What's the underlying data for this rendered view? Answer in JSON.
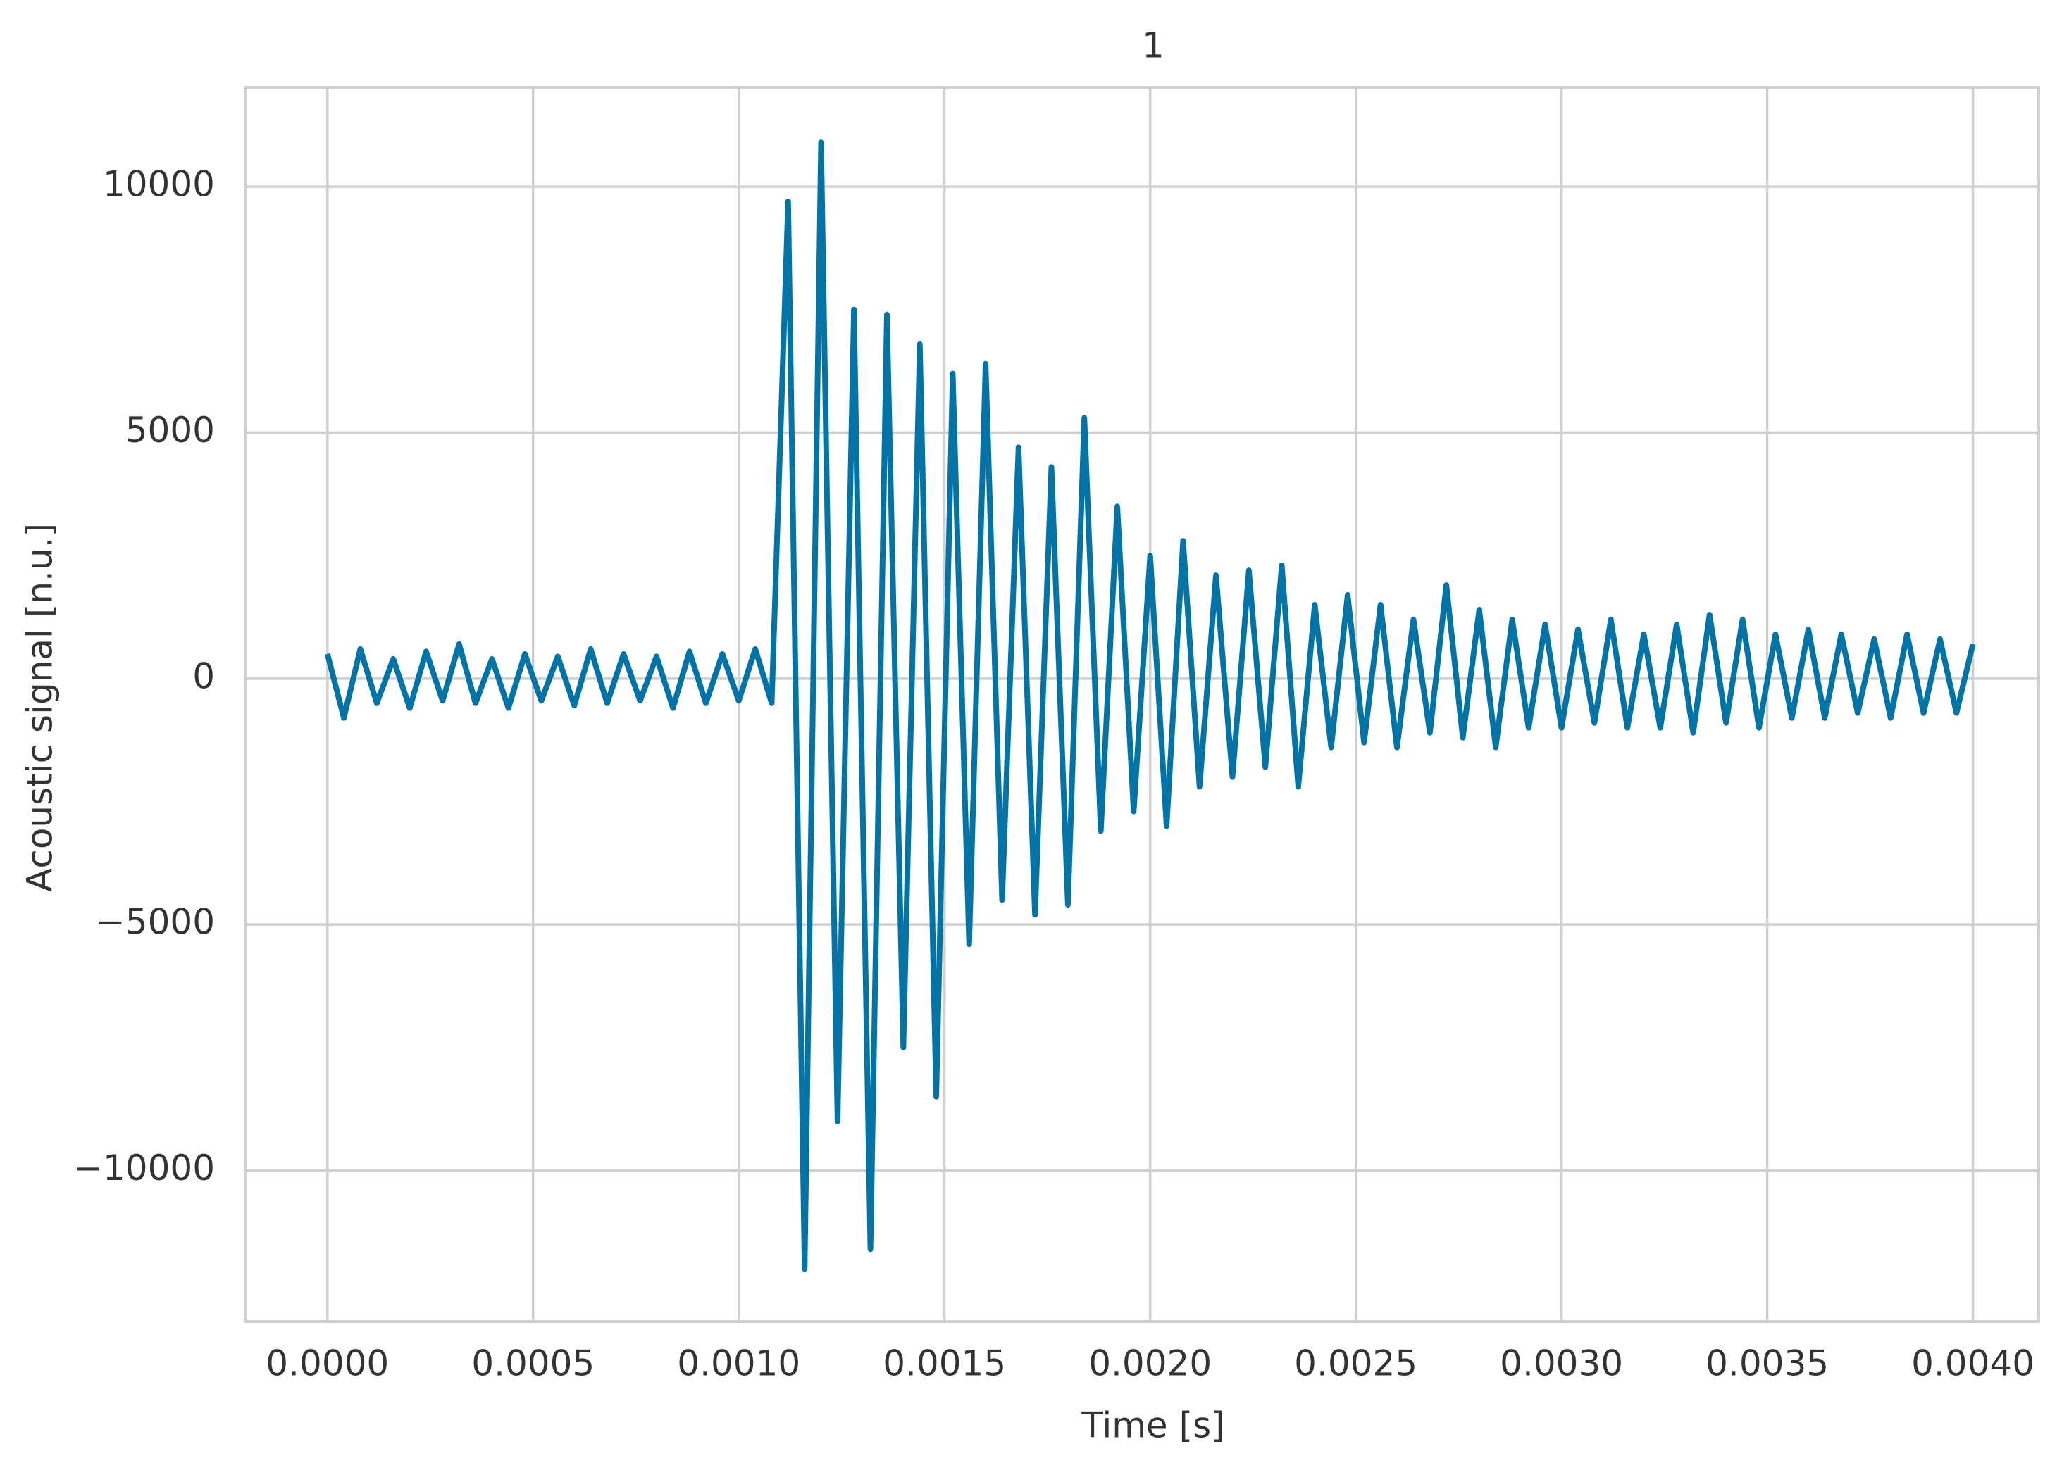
{
  "chart_data": {
    "type": "line",
    "title": "1",
    "xlabel": "Time [s]",
    "ylabel": "Acoustic signal [n.u.]",
    "x": [
      0,
      4e-05,
      8e-05,
      0.00012,
      0.00016,
      0.0002,
      0.00024,
      0.00028,
      0.00032,
      0.00036,
      0.0004,
      0.00044,
      0.00048,
      0.00052,
      0.00056,
      0.0006,
      0.00064,
      0.00068,
      0.00072,
      0.00076,
      0.0008,
      0.00084,
      0.00088,
      0.00092,
      0.00096,
      0.001,
      0.00104,
      0.00108,
      0.00112,
      0.00116,
      0.0012,
      0.00124,
      0.00128,
      0.00132,
      0.00136,
      0.0014,
      0.00144,
      0.00148,
      0.00152,
      0.00156,
      0.0016,
      0.00164,
      0.00168,
      0.00172,
      0.00176,
      0.0018,
      0.00184,
      0.00188,
      0.00192,
      0.00196,
      0.002,
      0.00204,
      0.00208,
      0.00212,
      0.00216,
      0.0022,
      0.00224,
      0.00228,
      0.00232,
      0.00236,
      0.0024,
      0.00244,
      0.00248,
      0.00252,
      0.00256,
      0.0026,
      0.00264,
      0.00268,
      0.00272,
      0.00276,
      0.0028,
      0.00284,
      0.00288,
      0.00292,
      0.00296,
      0.003,
      0.00304,
      0.00308,
      0.00312,
      0.00316,
      0.0032,
      0.00324,
      0.00328,
      0.00332,
      0.00336,
      0.0034,
      0.00344,
      0.00348,
      0.00352,
      0.00356,
      0.0036,
      0.00364,
      0.00368,
      0.00372,
      0.00376,
      0.0038,
      0.00384,
      0.00388,
      0.00392,
      0.00396,
      0.004
    ],
    "values": [
      500,
      -800,
      600,
      -500,
      400,
      -600,
      550,
      -450,
      700,
      -500,
      400,
      -600,
      500,
      -450,
      450,
      -550,
      600,
      -500,
      500,
      -450,
      450,
      -600,
      550,
      -500,
      500,
      -450,
      600,
      -500,
      9700,
      -12000,
      10900,
      -9000,
      7500,
      -11600,
      7400,
      -7500,
      6800,
      -8500,
      6200,
      -5400,
      6400,
      -4500,
      4700,
      -4800,
      4300,
      -4600,
      5300,
      -3100,
      3500,
      -2700,
      2500,
      -3000,
      2800,
      -2200,
      2100,
      -2000,
      2200,
      -1800,
      2300,
      -2200,
      1500,
      -1400,
      1700,
      -1300,
      1500,
      -1400,
      1200,
      -1100,
      1900,
      -1200,
      1400,
      -1400,
      1200,
      -1000,
      1100,
      -1000,
      1000,
      -900,
      1200,
      -1000,
      900,
      -1000,
      1100,
      -1100,
      1300,
      -900,
      1200,
      -1000,
      900,
      -800,
      1000,
      -800,
      900,
      -700,
      800,
      -800,
      900,
      -700,
      800,
      -700,
      700
    ],
    "color": "#0173a6",
    "xlim": [
      -0.0002,
      0.00416
    ],
    "ylim": [
      -13070,
      12020
    ],
    "xticks": [
      {
        "value": 0,
        "label": "0.0000"
      },
      {
        "value": 0.0005,
        "label": "0.0005"
      },
      {
        "value": 0.001,
        "label": "0.0010"
      },
      {
        "value": 0.0015,
        "label": "0.0015"
      },
      {
        "value": 0.002,
        "label": "0.0020"
      },
      {
        "value": 0.0025,
        "label": "0.0025"
      },
      {
        "value": 0.003,
        "label": "0.0030"
      },
      {
        "value": 0.0035,
        "label": "0.0035"
      },
      {
        "value": 0.004,
        "label": "0.0040"
      }
    ],
    "yticks": [
      {
        "value": -10000,
        "label": "−10000"
      },
      {
        "value": -5000,
        "label": "−5000"
      },
      0,
      5000,
      10000
    ],
    "grid": true
  }
}
